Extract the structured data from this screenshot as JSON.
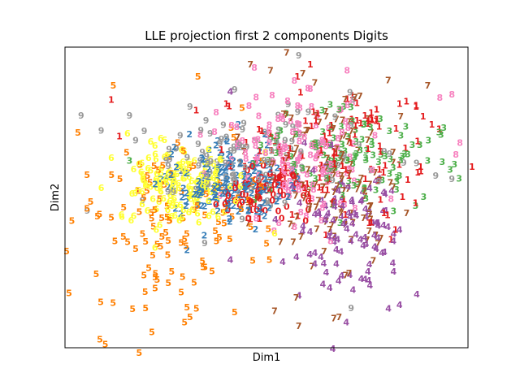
{
  "chart_data": {
    "type": "scatter",
    "title": "LLE projection first 2 components Digits",
    "xlabel": "Dim1",
    "ylabel": "Dim2",
    "xlim": [
      0,
      1
    ],
    "ylim": [
      0,
      1
    ],
    "grid": false,
    "ticks": "none",
    "marker": "digit-text",
    "series": [
      {
        "name": "0",
        "color": "#e41a1c",
        "cx": 0.5,
        "cy": 0.52,
        "sx": 0.06,
        "sy": 0.05,
        "n": 60,
        "points": [
          [
            0.5,
            0.52
          ],
          [
            0.48,
            0.5
          ],
          [
            0.52,
            0.54
          ]
        ]
      },
      {
        "name": "1",
        "color": "#e41a1c",
        "cx": 0.66,
        "cy": 0.64,
        "sx": 0.13,
        "sy": 0.13,
        "n": 120,
        "points": [
          [
            0.91,
            0.74
          ],
          [
            1.01,
            0.6
          ],
          [
            0.83,
            0.81
          ],
          [
            0.76,
            0.78
          ],
          [
            0.87,
            0.48
          ],
          [
            0.82,
            0.39
          ],
          [
            0.18,
            0.52
          ],
          [
            0.4,
            0.81
          ]
        ]
      },
      {
        "name": "2",
        "color": "#377eb8",
        "cx": 0.4,
        "cy": 0.54,
        "sx": 0.07,
        "sy": 0.06,
        "n": 170,
        "points": [
          [
            0.3,
            0.47
          ],
          [
            0.4,
            0.69
          ],
          [
            0.43,
            0.74
          ]
        ]
      },
      {
        "name": "3",
        "color": "#4daf4a",
        "cx": 0.72,
        "cy": 0.64,
        "sx": 0.12,
        "sy": 0.08,
        "n": 110,
        "points": [
          [
            0.94,
            0.73
          ],
          [
            0.9,
            0.62
          ],
          [
            0.89,
            0.5
          ],
          [
            0.16,
            0.62
          ],
          [
            0.87,
            0.47
          ]
        ]
      },
      {
        "name": "4",
        "color": "#984ea3",
        "cx": 0.7,
        "cy": 0.38,
        "sx": 0.07,
        "sy": 0.1,
        "n": 110,
        "points": [
          [
            0.83,
            0.14
          ],
          [
            0.41,
            0.85
          ],
          [
            0.64,
            0.21
          ],
          [
            0.41,
            0.29
          ]
        ]
      },
      {
        "name": "5",
        "color": "#ff7f00",
        "cx": 0.26,
        "cy": 0.4,
        "sx": 0.11,
        "sy": 0.17,
        "n": 120,
        "points": [
          [
            0.01,
            0.18
          ],
          [
            0.1,
            0.01
          ],
          [
            0.12,
            0.87
          ],
          [
            0.33,
            0.9
          ],
          [
            0.31,
            0.1
          ],
          [
            0.2,
            0.13
          ]
        ]
      },
      {
        "name": "6",
        "color": "#ffff33",
        "cx": 0.28,
        "cy": 0.55,
        "sx": 0.07,
        "sy": 0.07,
        "n": 160,
        "points": [
          [
            0.09,
            0.53
          ],
          [
            0.14,
            0.44
          ]
        ]
      },
      {
        "name": "7",
        "color": "#a65628",
        "cx": 0.66,
        "cy": 0.55,
        "sx": 0.1,
        "sy": 0.17,
        "n": 130,
        "points": [
          [
            0.55,
            0.98
          ],
          [
            0.46,
            0.94
          ],
          [
            0.51,
            0.92
          ],
          [
            0.62,
            0.88
          ],
          [
            0.9,
            0.87
          ],
          [
            0.58,
            0.07
          ],
          [
            0.52,
            0.12
          ],
          [
            0.68,
            0.1
          ]
        ]
      },
      {
        "name": "8",
        "color": "#f781bf",
        "cx": 0.58,
        "cy": 0.62,
        "sx": 0.1,
        "sy": 0.1,
        "n": 150,
        "points": [
          [
            0.93,
            0.83
          ],
          [
            0.96,
            0.84
          ],
          [
            0.97,
            0.64
          ],
          [
            0.7,
            0.92
          ],
          [
            0.47,
            0.93
          ],
          [
            0.98,
            0.68
          ]
        ]
      },
      {
        "name": "9",
        "color": "#999999",
        "cx": 0.47,
        "cy": 0.62,
        "sx": 0.14,
        "sy": 0.09,
        "n": 120,
        "points": [
          [
            0.04,
            0.77
          ],
          [
            0.09,
            0.72
          ],
          [
            0.16,
            0.77
          ],
          [
            0.31,
            0.8
          ],
          [
            0.58,
            0.97
          ],
          [
            0.96,
            0.56
          ],
          [
            0.71,
            0.13
          ],
          [
            0.92,
            0.57
          ]
        ]
      }
    ]
  }
}
